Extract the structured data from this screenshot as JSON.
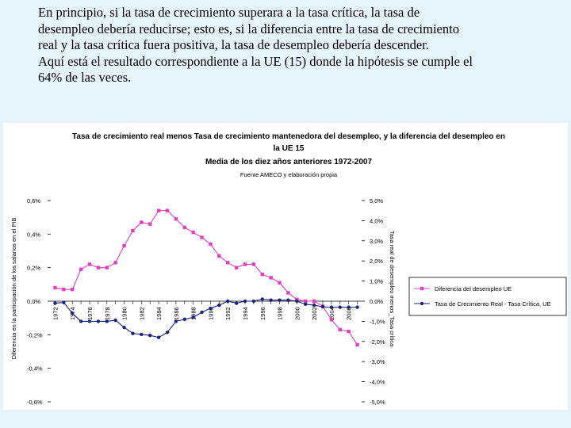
{
  "intro": {
    "line1": "En principio, si la tasa de crecimiento superara a la tasa crítica, la tasa de",
    "line2": "desempleo debería reducirse; esto es, si la diferencia entre la tasa de crecimiento",
    "line3": "real y la tasa crítica fuera positiva, la tasa de desempleo debería descender.",
    "line4": "Aquí está el resultado correspondiente a la UE (15) donde la hipótesis se cumple el",
    "line5": "64% de las veces."
  },
  "chart_data": {
    "type": "line",
    "title_lines": [
      "Tasa de crecimiento real menos Tasa de crecimiento mantenedora del desempleo, y la diferencia del desempleo en",
      "la UE 15",
      "Media de los diez años anteriores 1972-2007"
    ],
    "subtitle": "Fuente AMECO y elaboración propia",
    "x": [
      1972,
      1973,
      1974,
      1975,
      1976,
      1977,
      1978,
      1979,
      1980,
      1981,
      1982,
      1983,
      1984,
      1985,
      1986,
      1987,
      1988,
      1989,
      1990,
      1991,
      1992,
      1993,
      1994,
      1995,
      1996,
      1997,
      1998,
      1999,
      2000,
      2001,
      2002,
      2003,
      2004,
      2005,
      2006,
      2007
    ],
    "x_tick_labels": [
      "1972",
      "1974",
      "1976",
      "1978",
      "1980",
      "1982",
      "1984",
      "1986",
      "1988",
      "1990",
      "1992",
      "1994",
      "1996",
      "1998",
      "2000",
      "2002",
      "2004",
      "2006"
    ],
    "left_axis": {
      "label": "Diferencia en la participación de los salarios en el PIB",
      "ylim": [
        -0.6,
        0.6
      ],
      "ticks": [
        "0,6%",
        "0,4%",
        "0,2%",
        "0,0%",
        "-0,2%",
        "-0,4%",
        "-0,6%"
      ],
      "tick_values": [
        0.6,
        0.4,
        0.2,
        0.0,
        -0.2,
        -0.4,
        -0.6
      ]
    },
    "right_axis": {
      "label": "Tasa real de desempleo menos_Tasa crítica",
      "ylim": [
        -5.0,
        5.0
      ],
      "ticks": [
        "5,0%",
        "4,0%",
        "3,0%",
        "2,0%",
        "1,0%",
        "0,0%",
        "-1,0%",
        "-2,0%",
        "-3,0%",
        "-4,0%",
        "-5,0%"
      ],
      "tick_values": [
        5,
        4,
        3,
        2,
        1,
        0,
        -1,
        -2,
        -3,
        -4,
        -5
      ]
    },
    "series": [
      {
        "name": "Diferencia del desempleo UE",
        "axis": "left",
        "color": "#e040c0",
        "marker": "square",
        "values": [
          0.08,
          0.07,
          0.07,
          0.19,
          0.22,
          0.2,
          0.2,
          0.23,
          0.33,
          0.42,
          0.47,
          0.46,
          0.54,
          0.54,
          0.49,
          0.44,
          0.41,
          0.38,
          0.34,
          0.27,
          0.23,
          0.2,
          0.22,
          0.22,
          0.16,
          0.14,
          0.11,
          0.05,
          0.01,
          0.0,
          0.0,
          -0.03,
          -0.11,
          -0.17,
          -0.18,
          -0.26
        ]
      },
      {
        "name": "Tasa de Crecimiento Real - Tasa Crítica, UE",
        "axis": "right",
        "color": "#1a237e",
        "marker": "circle",
        "values": [
          -0.1,
          -0.06,
          -0.6,
          -1.0,
          -1.0,
          -1.0,
          -1.0,
          -0.95,
          -1.3,
          -1.6,
          -1.65,
          -1.7,
          -1.8,
          -1.55,
          -1.0,
          -0.9,
          -0.8,
          -0.55,
          -0.35,
          -0.2,
          0.0,
          -0.1,
          0.0,
          0.0,
          0.1,
          0.05,
          0.05,
          0.05,
          0.0,
          -0.15,
          -0.2,
          -0.28,
          -0.3,
          -0.3,
          -0.3,
          -0.3
        ]
      }
    ],
    "legend_position": "right",
    "grid": false
  }
}
